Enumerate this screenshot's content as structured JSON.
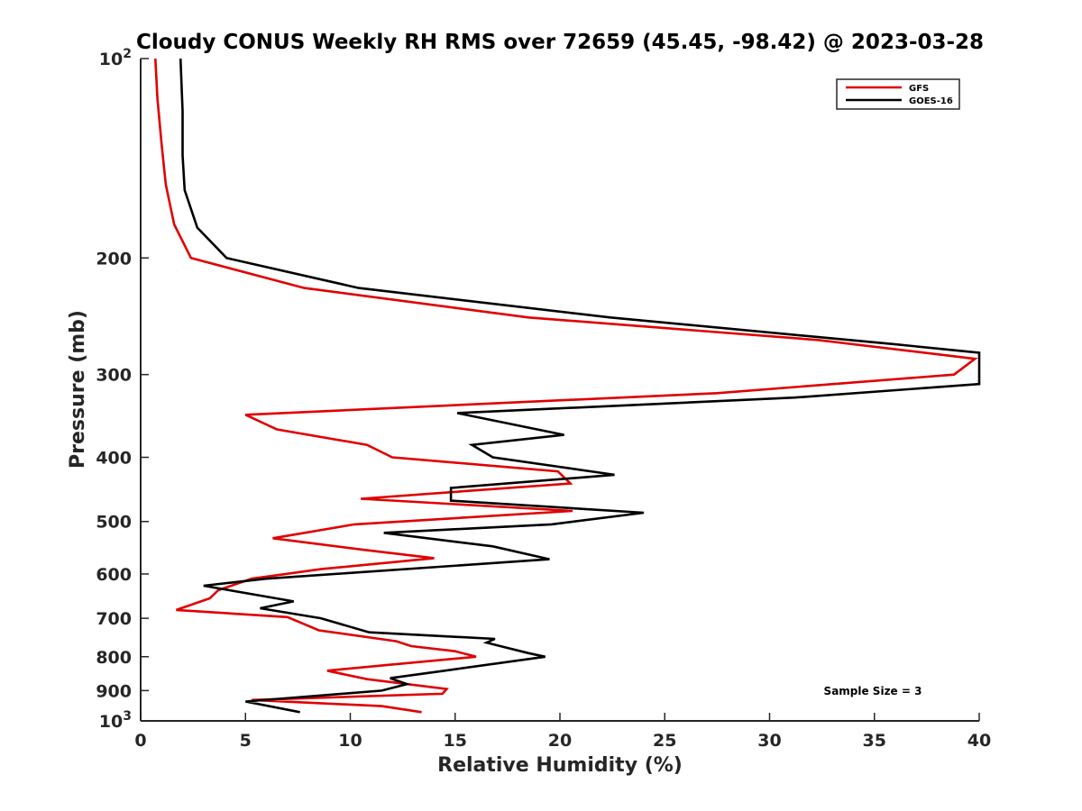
{
  "chart_data": {
    "type": "line",
    "title": "Cloudy CONUS Weekly RH RMS over 72659 (45.45, -98.42) @ 2023-03-28",
    "xlabel": "Relative Humidity (%)",
    "ylabel": "Pressure (mb)",
    "xlim": [
      0,
      40
    ],
    "ylim": [
      100,
      1000
    ],
    "y_scale": "log",
    "y_reversed": true,
    "x_ticks": [
      0,
      5,
      10,
      15,
      20,
      25,
      30,
      35,
      40
    ],
    "y_ticks": [
      {
        "value": 100,
        "label": "10",
        "sup": "2"
      },
      {
        "value": 200,
        "label": "200",
        "sup": ""
      },
      {
        "value": 300,
        "label": "300",
        "sup": ""
      },
      {
        "value": 400,
        "label": "400",
        "sup": ""
      },
      {
        "value": 500,
        "label": "500",
        "sup": ""
      },
      {
        "value": 600,
        "label": "600",
        "sup": ""
      },
      {
        "value": 700,
        "label": "700",
        "sup": ""
      },
      {
        "value": 800,
        "label": "800",
        "sup": ""
      },
      {
        "value": 900,
        "label": "900",
        "sup": ""
      },
      {
        "value": 1000,
        "label": "10",
        "sup": "3"
      }
    ],
    "grid": false,
    "legend_position": "top-right",
    "annotation": "Sample Size = 3",
    "series": [
      {
        "name": "GFS",
        "color": "#e00000",
        "points": [
          [
            0.7,
            100
          ],
          [
            0.8,
            115
          ],
          [
            1.0,
            135
          ],
          [
            1.2,
            155
          ],
          [
            1.6,
            178
          ],
          [
            2.4,
            200
          ],
          [
            7.8,
            222
          ],
          [
            18.5,
            246
          ],
          [
            32.3,
            266
          ],
          [
            39.8,
            284
          ],
          [
            38.8,
            300
          ],
          [
            27.5,
            320
          ],
          [
            5.0,
            345
          ],
          [
            6.5,
            363
          ],
          [
            10.8,
            383
          ],
          [
            12.0,
            400
          ],
          [
            19.9,
            420
          ],
          [
            20.5,
            438
          ],
          [
            10.5,
            462
          ],
          [
            20.6,
            482
          ],
          [
            10.2,
            505
          ],
          [
            6.3,
            530
          ],
          [
            10.7,
            552
          ],
          [
            14.0,
            568
          ],
          [
            8.6,
            590
          ],
          [
            5.3,
            610
          ],
          [
            3.7,
            635
          ],
          [
            3.3,
            653
          ],
          [
            1.7,
            680
          ],
          [
            7.0,
            697
          ],
          [
            8.5,
            730
          ],
          [
            12.2,
            758
          ],
          [
            12.9,
            771
          ],
          [
            15.0,
            785
          ],
          [
            16.0,
            800
          ],
          [
            12.0,
            822
          ],
          [
            8.9,
            840
          ],
          [
            10.8,
            865
          ],
          [
            14.6,
            895
          ],
          [
            14.4,
            910
          ],
          [
            5.3,
            930
          ],
          [
            11.5,
            950
          ],
          [
            13.4,
            970
          ]
        ]
      },
      {
        "name": "GOES-16",
        "color": "#000000",
        "points": [
          [
            1.9,
            100
          ],
          [
            2.0,
            120
          ],
          [
            2.0,
            140
          ],
          [
            2.1,
            158
          ],
          [
            2.7,
            180
          ],
          [
            4.1,
            200
          ],
          [
            10.4,
            222
          ],
          [
            22.4,
            246
          ],
          [
            36.0,
            270
          ],
          [
            40.0,
            278
          ],
          [
            40.0,
            310
          ],
          [
            31.2,
            325
          ],
          [
            15.1,
            343
          ],
          [
            20.2,
            370
          ],
          [
            15.8,
            383
          ],
          [
            16.8,
            400
          ],
          [
            22.6,
            425
          ],
          [
            14.8,
            445
          ],
          [
            14.8,
            465
          ],
          [
            24.0,
            485
          ],
          [
            19.6,
            505
          ],
          [
            11.6,
            520
          ],
          [
            16.8,
            545
          ],
          [
            19.5,
            570
          ],
          [
            6.0,
            610
          ],
          [
            3.0,
            625
          ],
          [
            7.3,
            660
          ],
          [
            5.7,
            676
          ],
          [
            8.6,
            700
          ],
          [
            10.9,
            735
          ],
          [
            16.9,
            752
          ],
          [
            16.5,
            762
          ],
          [
            18.5,
            790
          ],
          [
            19.3,
            800
          ],
          [
            14.5,
            840
          ],
          [
            11.9,
            862
          ],
          [
            12.7,
            880
          ],
          [
            11.5,
            900
          ],
          [
            5.0,
            935
          ],
          [
            7.6,
            970
          ]
        ]
      }
    ]
  }
}
